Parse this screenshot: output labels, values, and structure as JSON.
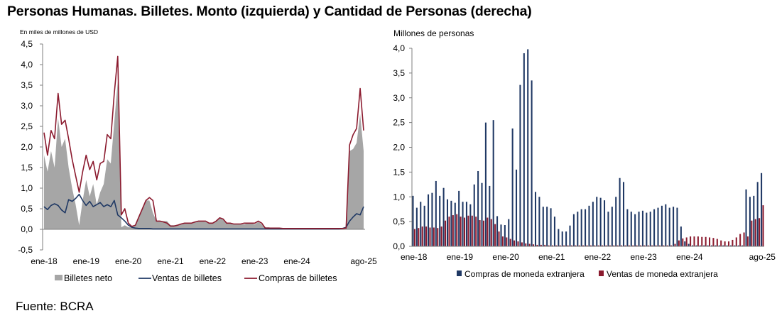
{
  "page": {
    "title": "Personas Humanas. Billetes. Monto (izquierda) y Cantidad de Personas (derecha)",
    "source": "Fuente: BCRA"
  },
  "colors": {
    "gray": "#a6a6a6",
    "navy": "#1f3864",
    "maroon": "#8b1a2e",
    "axis": "#7f7f7f"
  },
  "chart_data": [
    {
      "type": "area",
      "unit_label": "En miles de millones de USD",
      "ylim": [
        -0.5,
        4.5
      ],
      "yticks": [
        -0.5,
        0.0,
        0.5,
        1.0,
        1.5,
        2.0,
        2.5,
        3.0,
        3.5,
        4.0,
        4.5
      ],
      "ytick_labels": [
        "-0,5",
        "0,0",
        "0,5",
        "1,0",
        "1,5",
        "2,0",
        "2,5",
        "3,0",
        "3,5",
        "4,0",
        "4,5"
      ],
      "x_start": "2018-01",
      "xtick_labels": [
        {
          "label": "ene-18",
          "index": 0
        },
        {
          "label": "ene-19",
          "index": 12
        },
        {
          "label": "ene-20",
          "index": 24
        },
        {
          "label": "ene-21",
          "index": 36
        },
        {
          "label": "ene-22",
          "index": 48
        },
        {
          "label": "ene-23",
          "index": 60
        },
        {
          "label": "ene-24",
          "index": 72
        },
        {
          "label": "ago-25",
          "index": 91
        }
      ],
      "legend": [
        "Billetes neto",
        "Ventas de billetes",
        "Compras de billetes"
      ],
      "series": [
        {
          "name": "Billetes neto",
          "kind": "area",
          "values": [
            1.8,
            1.4,
            1.9,
            1.5,
            2.7,
            2.0,
            2.2,
            1.5,
            1.0,
            0.6,
            0.1,
            0.7,
            1.2,
            0.8,
            1.1,
            0.6,
            0.9,
            1.1,
            1.7,
            1.6,
            2.6,
            3.6,
            0.05,
            0.1,
            0.05,
            0.05,
            0.1,
            0.3,
            0.5,
            0.7,
            0.7,
            0.4,
            0.2,
            0.2,
            0.2,
            0.2,
            0.1,
            0.1,
            0.1,
            0.12,
            0.15,
            0.15,
            0.15,
            0.18,
            0.2,
            0.2,
            0.18,
            0.15,
            0.15,
            0.2,
            0.28,
            0.25,
            0.15,
            0.15,
            0.12,
            0.12,
            0.12,
            0.12,
            0.15,
            0.15,
            0.12,
            0.18,
            0.12,
            0.05,
            0.05,
            0.03,
            0.03,
            0.03,
            0.02,
            0.02,
            0.02,
            0.02,
            0.0,
            0.0,
            0.0,
            0.0,
            0.0,
            0.0,
            0.0,
            0.0,
            0.0,
            0.0,
            0.0,
            0.0,
            0.0,
            0.0,
            0.0,
            1.9,
            1.95,
            2.1,
            2.8,
            1.9
          ]
        },
        {
          "name": "Ventas de billetes",
          "kind": "line",
          "values": [
            0.55,
            0.48,
            0.58,
            0.62,
            0.58,
            0.47,
            0.4,
            0.72,
            0.68,
            0.75,
            0.85,
            0.7,
            0.58,
            0.68,
            0.55,
            0.6,
            0.65,
            0.55,
            0.6,
            0.55,
            0.7,
            0.35,
            0.28,
            0.2,
            0.1,
            0.05,
            0.03,
            0.02,
            0.02,
            0.02,
            0.02,
            0.01,
            0.01,
            0.01,
            0.01,
            0.01,
            0.01,
            0.01,
            0.01,
            0.01,
            0.01,
            0.01,
            0.01,
            0.01,
            0.01,
            0.01,
            0.01,
            0.01,
            0.01,
            0.01,
            0.01,
            0.01,
            0.01,
            0.01,
            0.01,
            0.01,
            0.01,
            0.01,
            0.01,
            0.01,
            0.01,
            0.01,
            0.01,
            0.01,
            0.01,
            0.01,
            0.01,
            0.01,
            0.01,
            0.01,
            0.01,
            0.01,
            0.01,
            0.01,
            0.01,
            0.01,
            0.01,
            0.01,
            0.01,
            0.01,
            0.01,
            0.01,
            0.01,
            0.01,
            0.01,
            0.02,
            0.05,
            0.2,
            0.3,
            0.38,
            0.35,
            0.55
          ]
        },
        {
          "name": "Compras de billetes",
          "kind": "line",
          "values": [
            2.35,
            1.8,
            2.4,
            2.2,
            3.3,
            2.55,
            2.65,
            2.2,
            1.7,
            1.3,
            0.9,
            1.4,
            1.8,
            1.45,
            1.65,
            1.2,
            1.6,
            1.65,
            2.3,
            2.2,
            3.3,
            4.2,
            0.35,
            0.5,
            0.15,
            0.07,
            0.1,
            0.3,
            0.5,
            0.7,
            0.77,
            0.7,
            0.2,
            0.2,
            0.18,
            0.15,
            0.08,
            0.08,
            0.1,
            0.13,
            0.15,
            0.15,
            0.15,
            0.18,
            0.2,
            0.2,
            0.2,
            0.15,
            0.15,
            0.2,
            0.28,
            0.25,
            0.15,
            0.15,
            0.13,
            0.13,
            0.13,
            0.15,
            0.15,
            0.15,
            0.15,
            0.2,
            0.15,
            0.03,
            0.03,
            0.03,
            0.03,
            0.03,
            0.02,
            0.02,
            0.02,
            0.02,
            0.02,
            0.02,
            0.02,
            0.02,
            0.02,
            0.02,
            0.02,
            0.02,
            0.02,
            0.02,
            0.02,
            0.02,
            0.02,
            0.02,
            0.03,
            2.05,
            2.3,
            2.45,
            3.42,
            2.4
          ]
        }
      ]
    },
    {
      "type": "bar",
      "ylabel": "Millones de personas",
      "ylim": [
        0.0,
        4.0
      ],
      "yticks": [
        0.0,
        0.5,
        1.0,
        1.5,
        2.0,
        2.5,
        3.0,
        3.5,
        4.0
      ],
      "ytick_labels": [
        "0,0",
        "0,5",
        "1,0",
        "1,5",
        "2,0",
        "2,5",
        "3,0",
        "3,5",
        "4,0"
      ],
      "x_start": "2018-01",
      "xtick_labels": [
        {
          "label": "ene-18",
          "index": 0
        },
        {
          "label": "ene-19",
          "index": 12
        },
        {
          "label": "ene-20",
          "index": 24
        },
        {
          "label": "ene-21",
          "index": 36
        },
        {
          "label": "ene-22",
          "index": 48
        },
        {
          "label": "ene-23",
          "index": 60
        },
        {
          "label": "ene-24",
          "index": 72
        },
        {
          "label": "ago-25",
          "index": 91
        }
      ],
      "legend": [
        "Compras de moneda extranjera",
        "Ventas de moneda extranjera"
      ],
      "series": [
        {
          "name": "Compras de moneda extranjera",
          "values": [
            1.02,
            0.78,
            0.9,
            0.82,
            1.05,
            1.08,
            1.32,
            1.02,
            1.18,
            0.95,
            0.92,
            0.88,
            1.12,
            0.9,
            0.9,
            0.85,
            1.25,
            1.52,
            1.28,
            2.5,
            1.22,
            2.55,
            0.61,
            0.44,
            0.43,
            0.55,
            2.38,
            1.55,
            3.26,
            3.9,
            3.98,
            3.35,
            1.1,
            1.0,
            0.8,
            0.8,
            0.77,
            0.6,
            0.35,
            0.3,
            0.3,
            0.42,
            0.65,
            0.7,
            0.75,
            0.75,
            0.82,
            0.9,
            1.0,
            0.98,
            0.93,
            0.7,
            0.8,
            1.0,
            1.38,
            1.3,
            0.75,
            0.7,
            0.65,
            0.7,
            0.72,
            0.68,
            0.7,
            0.75,
            0.78,
            0.82,
            0.85,
            0.78,
            0.8,
            0.78,
            0.4,
            0.1,
            0.05,
            0.02,
            0.02,
            0.02,
            0.02,
            0.02,
            0.02,
            0.02,
            0.02,
            0.02,
            0.02,
            0.02,
            0.02,
            0.02,
            0.02,
            1.15,
            1.0,
            1.02,
            1.3,
            1.48
          ]
        },
        {
          "name": "Ventas de moneda extranjera",
          "values": [
            0.35,
            0.37,
            0.4,
            0.4,
            0.38,
            0.38,
            0.37,
            0.4,
            0.52,
            0.6,
            0.63,
            0.65,
            0.6,
            0.58,
            0.62,
            0.62,
            0.6,
            0.53,
            0.52,
            0.58,
            0.55,
            0.45,
            0.3,
            0.2,
            0.18,
            0.15,
            0.12,
            0.1,
            0.08,
            0.06,
            0.05,
            0.04,
            0.03,
            0.03,
            0.03,
            0.02,
            0.02,
            0.02,
            0.02,
            0.02,
            0.02,
            0.02,
            0.02,
            0.02,
            0.02,
            0.02,
            0.02,
            0.02,
            0.02,
            0.02,
            0.02,
            0.02,
            0.02,
            0.02,
            0.02,
            0.02,
            0.02,
            0.02,
            0.02,
            0.02,
            0.02,
            0.02,
            0.02,
            0.02,
            0.02,
            0.02,
            0.02,
            0.02,
            0.05,
            0.12,
            0.16,
            0.18,
            0.2,
            0.2,
            0.2,
            0.19,
            0.19,
            0.18,
            0.17,
            0.15,
            0.12,
            0.1,
            0.1,
            0.13,
            0.18,
            0.25,
            0.28,
            0.2,
            0.52,
            0.55,
            0.57,
            0.83
          ]
        }
      ]
    }
  ]
}
